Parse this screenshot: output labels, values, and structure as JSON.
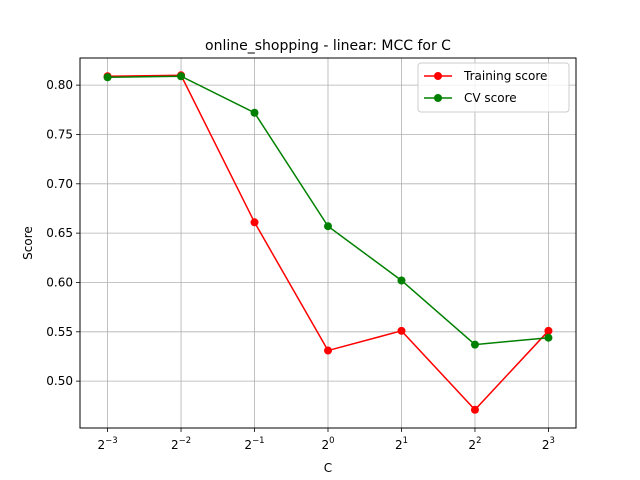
{
  "chart_data": {
    "type": "line",
    "title": "online_shopping - linear: MCC for C",
    "xlabel": "C",
    "ylabel": "Score",
    "x_ticks": [
      {
        "base": "2",
        "exp": "−3"
      },
      {
        "base": "2",
        "exp": "−2"
      },
      {
        "base": "2",
        "exp": "−1"
      },
      {
        "base": "2",
        "exp": "0"
      },
      {
        "base": "2",
        "exp": "1"
      },
      {
        "base": "2",
        "exp": "2"
      },
      {
        "base": "2",
        "exp": "3"
      }
    ],
    "x": [
      -3,
      -2,
      -1,
      0,
      1,
      2,
      3
    ],
    "x_scale": "log2",
    "y_ticks": [
      "0.50",
      "0.55",
      "0.60",
      "0.65",
      "0.70",
      "0.75",
      "0.80"
    ],
    "ylim": [
      0.4525,
      0.8275
    ],
    "grid": true,
    "legend_position": "top-right",
    "series": [
      {
        "name": "Training score",
        "color": "#ff0000",
        "values": [
          0.809,
          0.81,
          0.661,
          0.531,
          0.551,
          0.471,
          0.551
        ]
      },
      {
        "name": "CV score",
        "color": "#008000",
        "values": [
          0.808,
          0.809,
          0.772,
          0.657,
          0.602,
          0.537,
          0.544
        ]
      }
    ]
  }
}
